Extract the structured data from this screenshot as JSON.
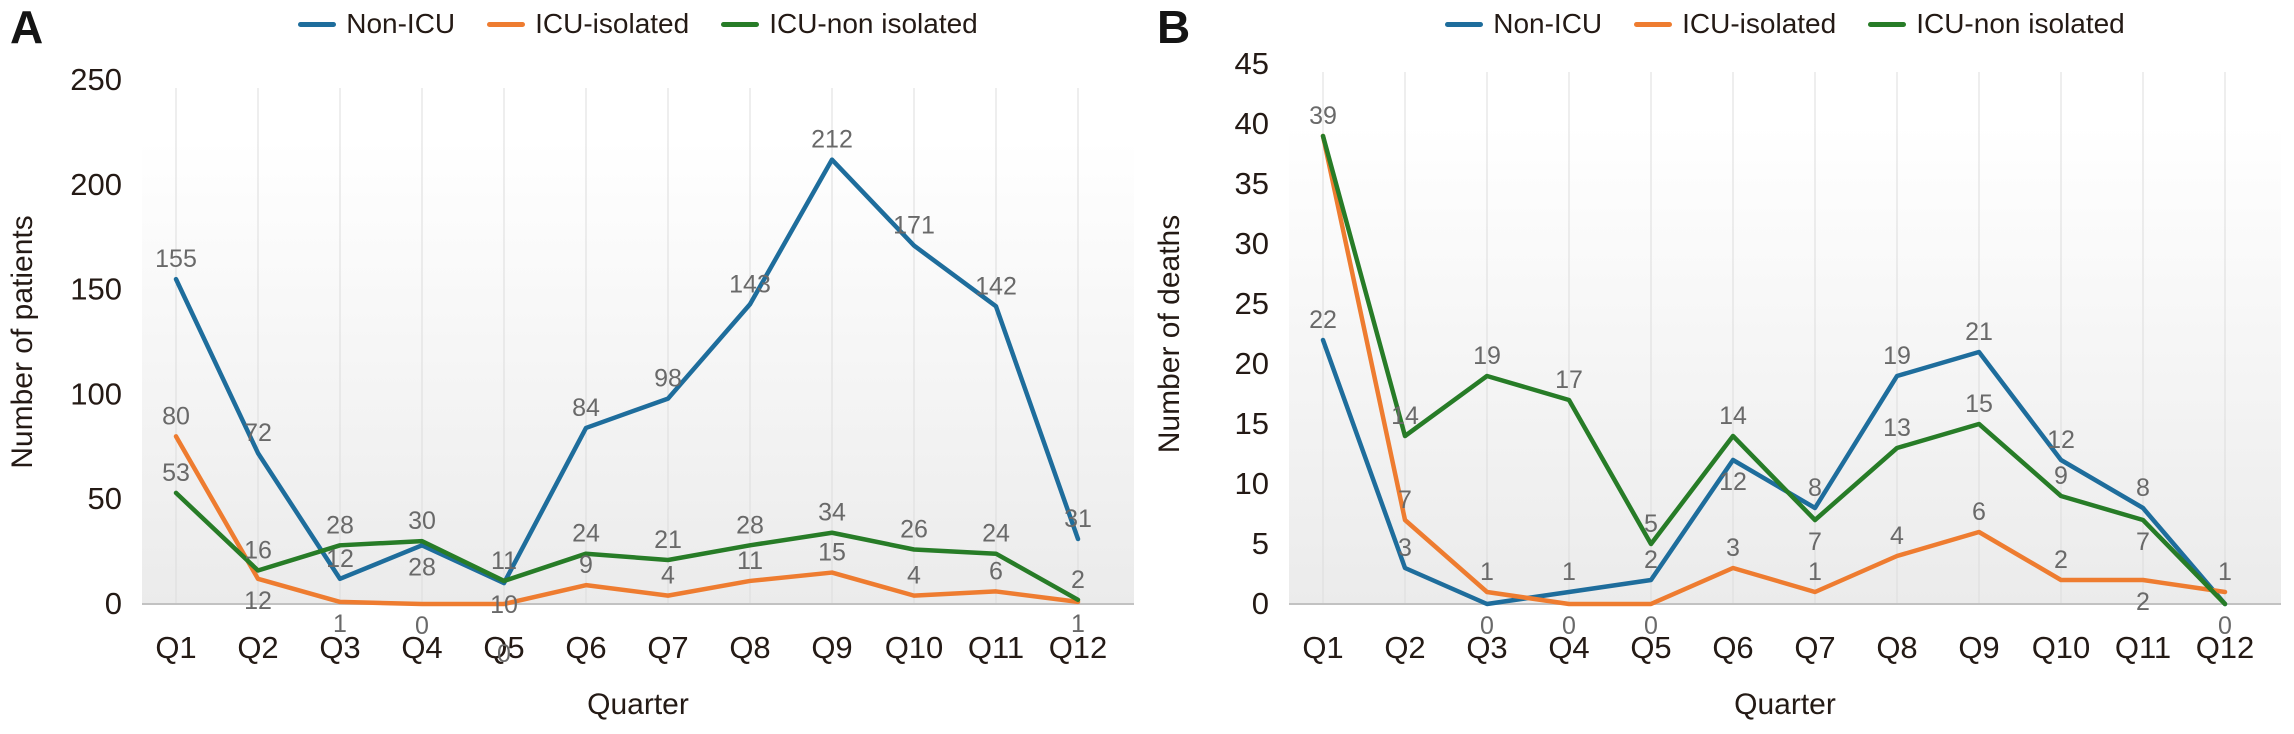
{
  "panels": [
    {
      "label": "A"
    },
    {
      "label": "B"
    }
  ],
  "colors": {
    "axis_text": "#241a15",
    "data_label": "#696969",
    "gridline": "#dcdcdc",
    "axis_line": "#c2c2c2",
    "plot_bg_top": "#ffffff",
    "plot_bg_bottom": "#ebebeb"
  },
  "chart_data": [
    {
      "id": "A",
      "type": "line",
      "title": "",
      "xlabel": "Quarter",
      "ylabel": "Number of patients",
      "categories": [
        "Q1",
        "Q2",
        "Q3",
        "Q4",
        "Q5",
        "Q6",
        "Q7",
        "Q8",
        "Q9",
        "Q10",
        "Q11",
        "Q12"
      ],
      "ylim": [
        0,
        250
      ],
      "ytick_step": 50,
      "grid": "vertical-only",
      "legend_position": "top-center",
      "data_labels": true,
      "series": [
        {
          "name": "Non-ICU",
          "color": "#1e6d9c",
          "values": [
            155,
            72,
            12,
            28,
            10,
            84,
            98,
            143,
            212,
            171,
            142,
            31
          ]
        },
        {
          "name": "ICU-isolated",
          "color": "#ee7c30",
          "values": [
            80,
            12,
            1,
            0,
            0,
            9,
            4,
            11,
            15,
            4,
            6,
            1
          ]
        },
        {
          "name": "ICU-non isolated",
          "color": "#277c27",
          "values": [
            53,
            16,
            28,
            30,
            11,
            24,
            21,
            28,
            34,
            26,
            24,
            2
          ]
        }
      ]
    },
    {
      "id": "B",
      "type": "line",
      "title": "",
      "xlabel": "Quarter",
      "ylabel": "Number of deaths",
      "categories": [
        "Q1",
        "Q2",
        "Q3",
        "Q4",
        "Q5",
        "Q6",
        "Q7",
        "Q8",
        "Q9",
        "Q10",
        "Q11",
        "Q12"
      ],
      "ylim": [
        0,
        45
      ],
      "ytick_step": 5,
      "grid": "vertical-only",
      "legend_position": "top-center",
      "data_labels": true,
      "series": [
        {
          "name": "Non-ICU",
          "color": "#1e6d9c",
          "values": [
            22,
            3,
            0,
            1,
            2,
            12,
            8,
            19,
            21,
            12,
            8,
            0
          ]
        },
        {
          "name": "ICU-isolated",
          "color": "#ee7c30",
          "values": [
            39,
            7,
            1,
            0,
            0,
            3,
            1,
            4,
            6,
            2,
            2,
            1
          ]
        },
        {
          "name": "ICU-non isolated",
          "color": "#277c27",
          "values": [
            39,
            14,
            19,
            17,
            5,
            14,
            7,
            13,
            15,
            9,
            7,
            0
          ]
        }
      ]
    }
  ]
}
